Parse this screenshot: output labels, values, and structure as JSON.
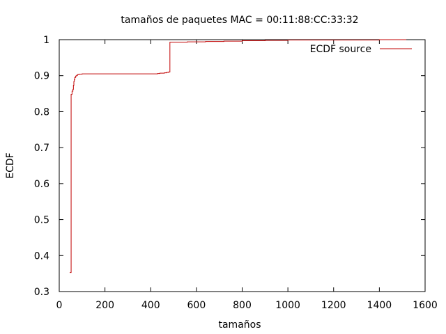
{
  "chart_data": {
    "type": "line",
    "title": "tamaños de paquetes MAC = 00:11:88:CC:33:32",
    "xlabel": "tamaños",
    "ylabel": "ECDF",
    "xlim": [
      0,
      1600
    ],
    "ylim": [
      0.3,
      1.0
    ],
    "x_ticks": [
      0,
      200,
      400,
      600,
      800,
      1000,
      1200,
      1400,
      1600
    ],
    "y_ticks": [
      0.3,
      0.4,
      0.5,
      0.6,
      0.7,
      0.8,
      0.9,
      1
    ],
    "grid": false,
    "legend_position": "top-right",
    "series_color": "#c00000",
    "series": [
      {
        "name": "ECDF source",
        "step": true,
        "x": [
          46,
          52,
          56,
          60,
          62,
          64,
          66,
          68,
          72,
          76,
          80,
          86,
          100,
          430,
          440,
          460,
          470,
          478,
          484,
          560,
          640,
          720,
          800,
          900,
          1000,
          1200,
          1400,
          1518
        ],
        "y": [
          0.353,
          0.848,
          0.857,
          0.862,
          0.873,
          0.884,
          0.889,
          0.895,
          0.899,
          0.901,
          0.903,
          0.904,
          0.905,
          0.906,
          0.907,
          0.908,
          0.909,
          0.91,
          0.993,
          0.994,
          0.995,
          0.996,
          0.997,
          0.998,
          0.999,
          0.999,
          1.0,
          1.0
        ]
      }
    ]
  }
}
